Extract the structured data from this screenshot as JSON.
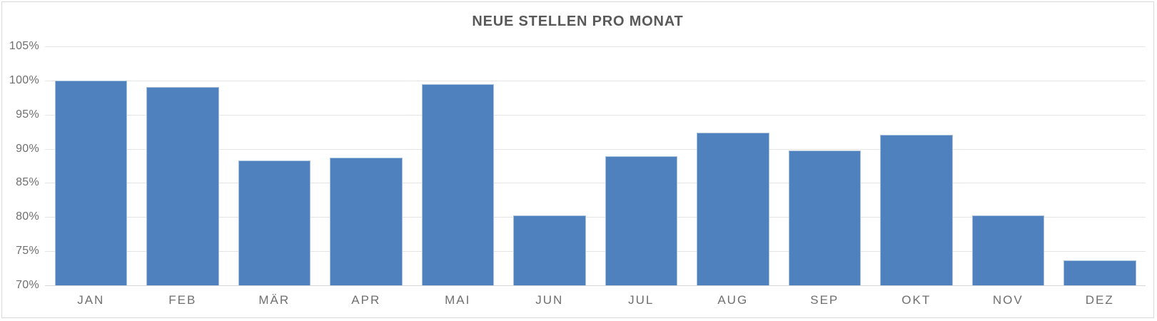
{
  "chart_data": {
    "type": "bar",
    "title": "NEUE STELLEN PRO MONAT",
    "categories": [
      "JAN",
      "FEB",
      "MÄR",
      "APR",
      "MAI",
      "JUN",
      "JUL",
      "AUG",
      "SEP",
      "OKT",
      "NOV",
      "DEZ"
    ],
    "values": [
      100.0,
      99.0,
      88.3,
      88.7,
      99.5,
      80.2,
      88.9,
      92.4,
      89.7,
      92.0,
      80.2,
      73.7
    ],
    "unit": "%",
    "xlabel": "",
    "ylabel": "",
    "ylim": [
      70,
      105
    ],
    "ytick_step": 5,
    "ytick_labels": [
      "105%",
      "100%",
      "95%",
      "90%",
      "85%",
      "80%",
      "75%",
      "70%"
    ],
    "grid": true,
    "legend": "none",
    "colors": {
      "bar": "#4e81bd",
      "bar_border": "#a7c1dd",
      "grid": "#e4e4e4",
      "axis_line": "#d6d6d6",
      "title": "#595959",
      "labels": "#6f6f6f",
      "frame_border": "#d9d9d9"
    }
  }
}
